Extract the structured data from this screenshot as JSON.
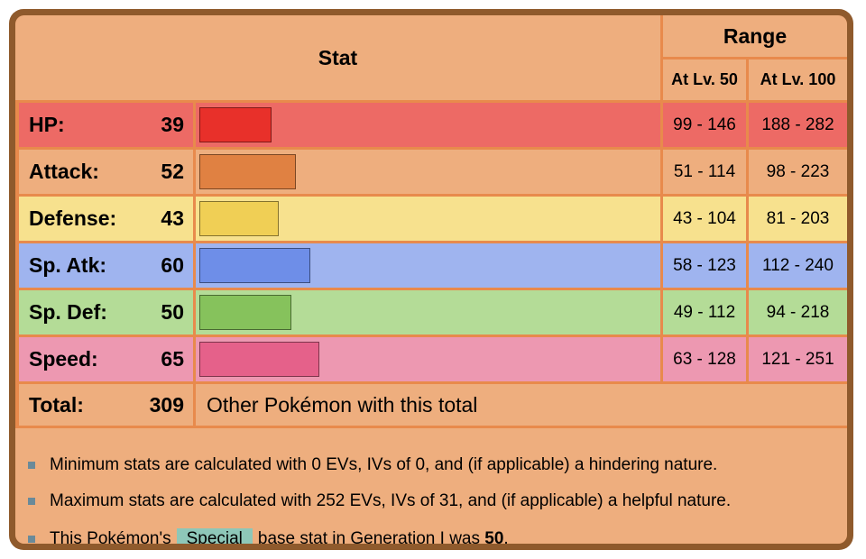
{
  "header": {
    "stat_label": "Stat",
    "range_label": "Range",
    "lv50_label": "At Lv. 50",
    "lv100_label": "At Lv. 100"
  },
  "stats": [
    {
      "label": "HP:",
      "value": "39",
      "base": 39,
      "range50": "99 - 146",
      "range100": "188 - 282",
      "row_color": "#ed6a65",
      "bar_color": "#e8302a"
    },
    {
      "label": "Attack:",
      "value": "52",
      "base": 52,
      "range50": "51 - 114",
      "range100": "98 - 223",
      "row_color": "#eeae7e",
      "bar_color": "#e08142"
    },
    {
      "label": "Defense:",
      "value": "43",
      "base": 43,
      "range50": "43 - 104",
      "range100": "81 - 203",
      "row_color": "#f7e18e",
      "bar_color": "#f0cf55"
    },
    {
      "label": "Sp. Atk:",
      "value": "60",
      "base": 60,
      "range50": "58 - 123",
      "range100": "112 - 240",
      "row_color": "#9fb4ef",
      "bar_color": "#6e8ee8"
    },
    {
      "label": "Sp. Def:",
      "value": "50",
      "base": 50,
      "range50": "49 - 112",
      "range100": "94 - 218",
      "row_color": "#b4dc97",
      "bar_color": "#86c25c"
    },
    {
      "label": "Speed:",
      "value": "65",
      "base": 65,
      "range50": "63 - 128",
      "range100": "121 - 251",
      "row_color": "#ed98b1",
      "bar_color": "#e5618a"
    }
  ],
  "total": {
    "label": "Total:",
    "value": "309",
    "link_text": "Other Pokémon with this total"
  },
  "notes": {
    "min_note": "Minimum stats are calculated with 0 EVs, IVs of 0, and (if applicable) a hindering nature.",
    "max_note": "Maximum stats are calculated with 252 EVs, IVs of 31, and (if applicable) a helpful nature.",
    "special_prefix": "This Pokémon's",
    "special_tag": "Special",
    "special_mid": "base stat in Generation I was",
    "special_value": "50",
    "special_end": "."
  },
  "colors": {
    "frame": "#8f5a2c",
    "grid": "#e88a4c",
    "header_bg": "#eeae7e",
    "bullet": "#6a8a99",
    "special_tag_bg": "#8ec7b8"
  }
}
